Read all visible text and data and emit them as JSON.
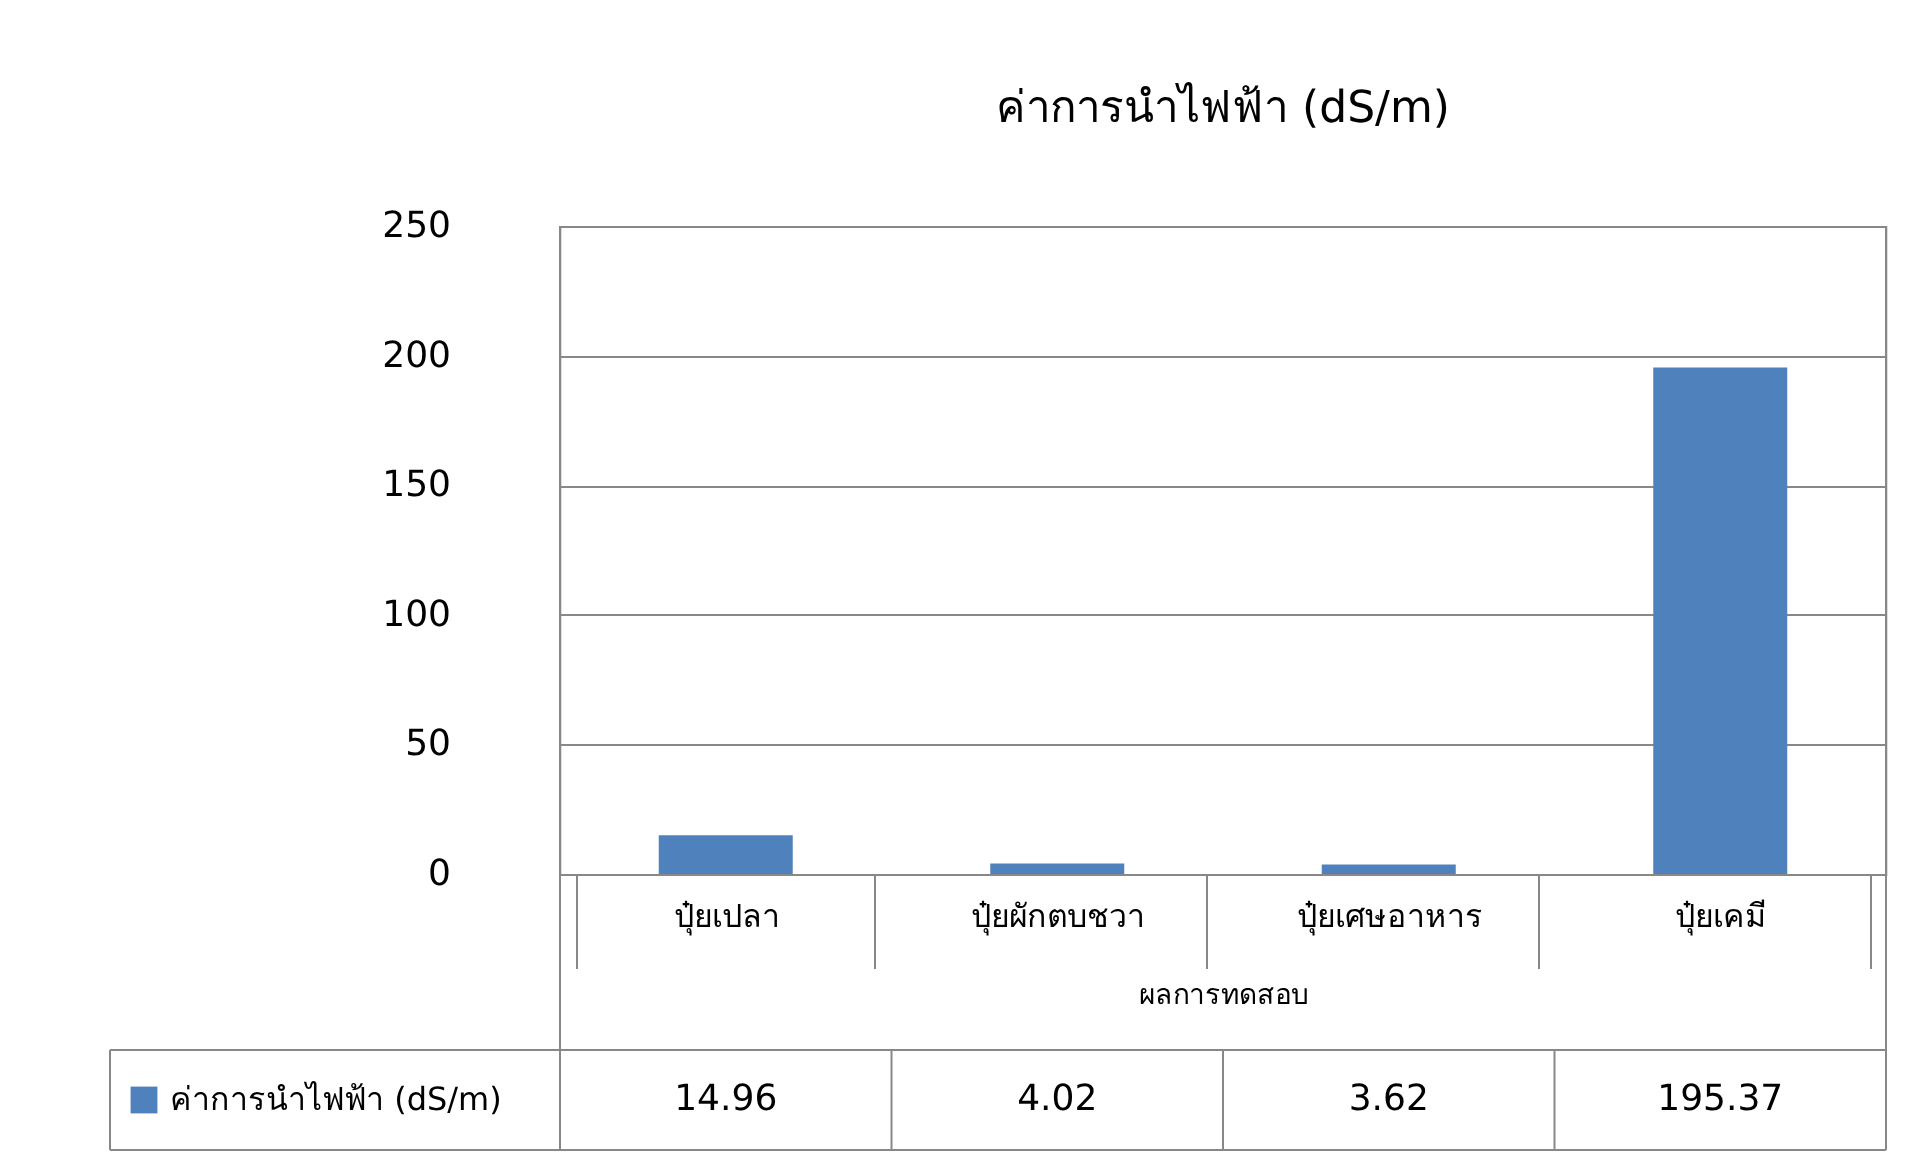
{
  "chart_data": {
    "type": "bar",
    "title": "ค่าการนำไฟฟ้า (dS/m)",
    "xlabel": "ผลการทดสอบ",
    "categories": [
      "ปุ๋ยเปลา",
      "ปุ๋ยผักตบชวา",
      "ปุ๋ยเศษอาหาร",
      "ปุ๋ยเคมี"
    ],
    "series": [
      {
        "name": "ค่าการนำไฟฟ้า (dS/m)",
        "color": "#4f81bd",
        "values": [
          14.96,
          4.02,
          3.62,
          195.37
        ]
      }
    ],
    "ylim": [
      0,
      250
    ],
    "yticks": [
      0,
      50,
      100,
      150,
      200,
      250
    ],
    "grid": "y",
    "legend": "bottom left",
    "data_labels": true
  }
}
